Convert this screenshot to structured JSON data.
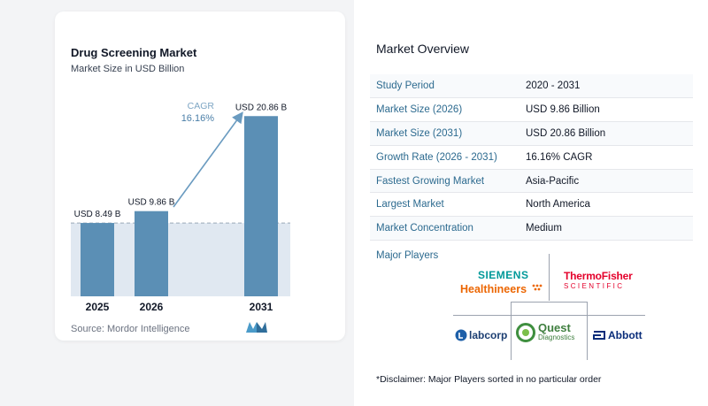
{
  "chart": {
    "title": "Drug Screening Market",
    "subtitle": "Market Size in USD Billion",
    "source": "Source:  Mordor Intelligence",
    "cagr_label": "CAGR",
    "cagr_value": "16.16%",
    "bar_color": "#5b8fb5",
    "baseline_fill": "#e0e8f1"
  },
  "chart_data": {
    "type": "bar",
    "categories": [
      "2025",
      "2026",
      "2031"
    ],
    "values": [
      8.49,
      9.86,
      20.86
    ],
    "data_labels": [
      "USD 8.49 B",
      "USD 9.86 B",
      "USD 20.86 B"
    ],
    "title": "Drug Screening Market",
    "subtitle": "Market Size in USD Billion",
    "xlabel": "",
    "ylabel": "",
    "ylim": [
      0,
      21.5
    ],
    "grid": false,
    "annotation": "CAGR 16.16%"
  },
  "overview": {
    "title": "Market Overview",
    "rows": [
      {
        "key": "Study Period",
        "value": "2020 - 2031"
      },
      {
        "key": "Market Size (2026)",
        "value": "USD 9.86 Billion"
      },
      {
        "key": "Market Size (2031)",
        "value": "USD 20.86 Billion"
      },
      {
        "key": "Growth Rate (2026 - 2031)",
        "value": "16.16% CAGR"
      },
      {
        "key": "Fastest Growing Market",
        "value": "Asia-Pacific"
      },
      {
        "key": "Largest Market",
        "value": "North America"
      },
      {
        "key": "Market Concentration",
        "value": "Medium"
      }
    ]
  },
  "players": {
    "title": "Major Players",
    "siemens_top": "SIEMENS",
    "siemens_bottom": "Healthineers",
    "thermo_top": "ThermoFisher",
    "thermo_bottom": "SCIENTIFIC",
    "labcorp": "labcorp",
    "quest_top": "Quest",
    "quest_bottom": "Diagnostics",
    "abbott": "Abbott"
  },
  "disclaimer": "*Disclaimer: Major Players sorted in no particular order"
}
